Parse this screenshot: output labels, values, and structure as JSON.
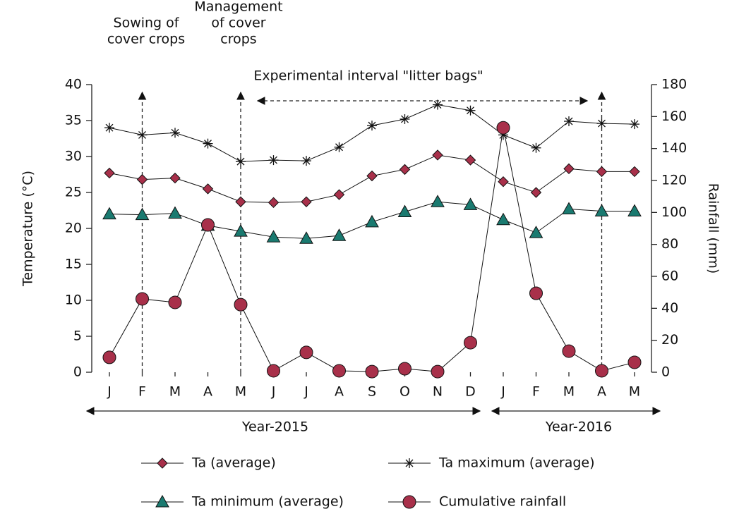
{
  "chart_data": {
    "type": "line",
    "categories": [
      "J",
      "F",
      "M",
      "A",
      "M",
      "J",
      "J",
      "A",
      "S",
      "O",
      "N",
      "D",
      "J",
      "F",
      "M",
      "A",
      "M"
    ],
    "ylabel": "Temperature (°C)",
    "y2label": "Rainfall (mm)",
    "ylim": [
      0,
      40
    ],
    "yticks": [
      0,
      5,
      10,
      15,
      20,
      25,
      30,
      35,
      40
    ],
    "y2lim": [
      0,
      180
    ],
    "y2ticks": [
      0,
      20,
      40,
      60,
      80,
      100,
      120,
      140,
      160,
      180
    ],
    "grid": false,
    "series": [
      {
        "name": "Ta (average)",
        "color": "#a8304a",
        "marker": "diamond",
        "values": [
          27.7,
          26.8,
          27.0,
          25.5,
          23.7,
          23.6,
          23.7,
          24.7,
          27.3,
          28.2,
          30.2,
          29.5,
          26.5,
          25.0,
          28.3,
          27.9,
          27.9
        ]
      },
      {
        "name": "Ta maximum (average)",
        "color": "#111111",
        "marker": "star",
        "values": [
          34.0,
          33.0,
          33.3,
          31.8,
          29.3,
          29.5,
          29.4,
          31.3,
          34.3,
          35.2,
          37.2,
          36.4,
          33.0,
          31.2,
          34.9,
          34.6,
          34.5
        ]
      },
      {
        "name": "Ta minimum (average)",
        "color": "#1a7a70",
        "marker": "triangle",
        "values": [
          22.0,
          21.9,
          22.1,
          20.4,
          19.6,
          18.8,
          18.6,
          19.0,
          20.9,
          22.3,
          23.7,
          23.3,
          21.2,
          19.4,
          22.7,
          22.4,
          22.4
        ]
      },
      {
        "name": "Cumulative rainfall",
        "color": "#a8304a",
        "marker": "circle",
        "axis": "y2",
        "values": [
          9.3,
          45.9,
          43.7,
          92.2,
          42.3,
          0.9,
          12.4,
          0.9,
          0.4,
          2.2,
          0.4,
          18.5,
          153,
          49.4,
          13.2,
          0.9,
          6.2
        ]
      }
    ],
    "annotations": {
      "sowing": [
        "Sowing of",
        "cover crops"
      ],
      "management": [
        "Management",
        "of cover",
        "crops"
      ],
      "interval": "Experimental interval \"litter bags\"",
      "year1": "Year-2015",
      "year2": "Year-2016"
    }
  }
}
